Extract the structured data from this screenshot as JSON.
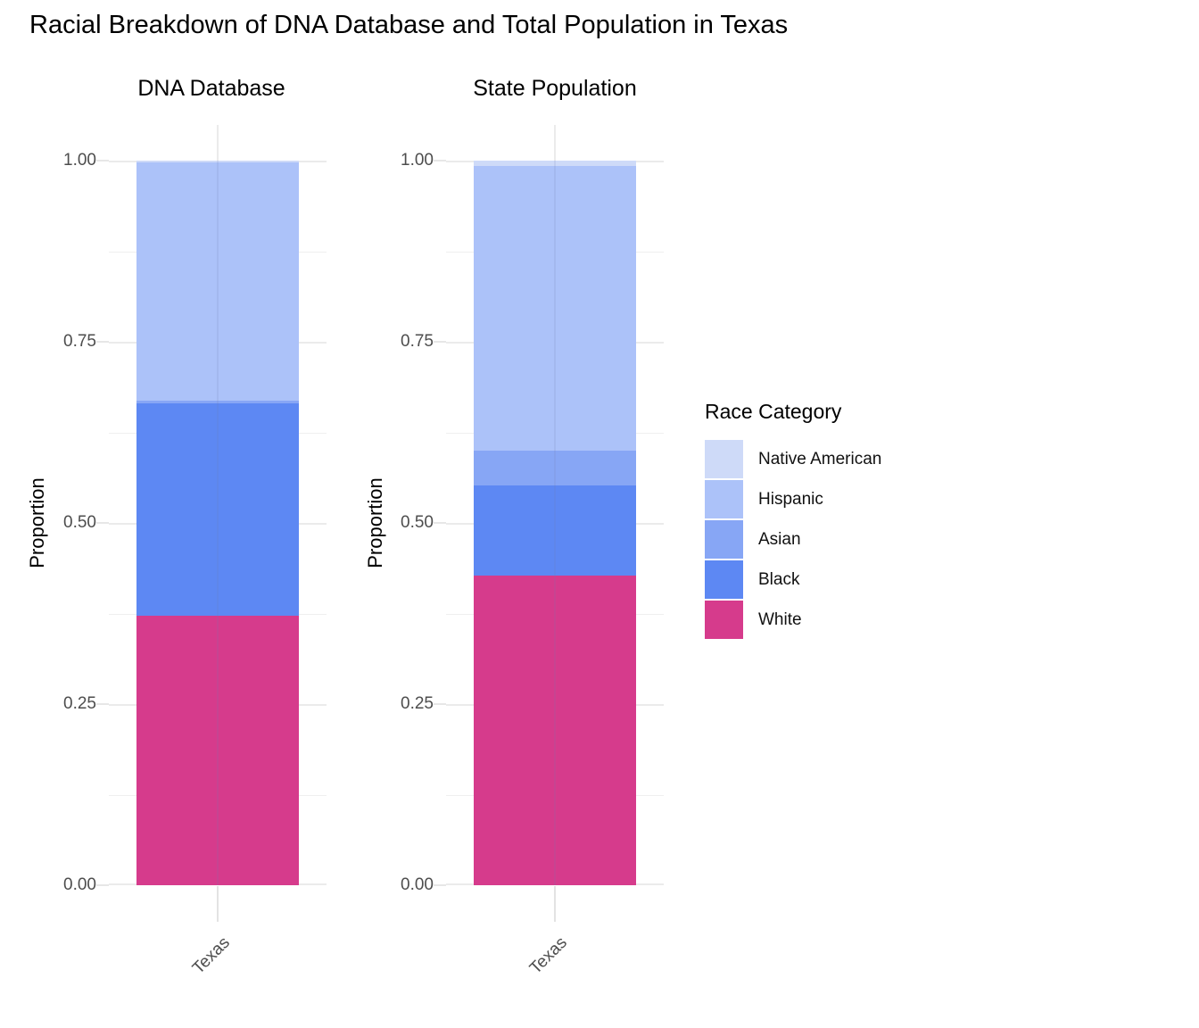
{
  "title": "Racial Breakdown of DNA Database and Total Population in Texas",
  "colors": {
    "native_american": "#cedaf8",
    "hispanic": "#acc2f9",
    "asian": "#87a6f5",
    "black": "#5d88f3",
    "white": "#d63b8c"
  },
  "legend": {
    "title": "Race Category",
    "entries": [
      {
        "label": "Native American",
        "color_key": "native_american"
      },
      {
        "label": "Hispanic",
        "color_key": "hispanic"
      },
      {
        "label": "Asian",
        "color_key": "asian"
      },
      {
        "label": "Black",
        "color_key": "black"
      },
      {
        "label": "White",
        "color_key": "white"
      }
    ]
  },
  "chart_data": {
    "type": "bar",
    "stacked": true,
    "title": "Racial Breakdown of DNA Database and Total Population in Texas",
    "ylabel": "Proportion",
    "ylim": [
      0,
      1
    ],
    "yticks": [
      "1.00",
      "0.75",
      "0.50",
      "0.25",
      "0.00"
    ],
    "ytick_values": [
      1.0,
      0.75,
      0.5,
      0.25,
      0.0
    ],
    "grid": true,
    "legend_position": "right",
    "categories": [
      "Texas"
    ],
    "panels": [
      {
        "title": "DNA Database",
        "x_tick_label": "Texas",
        "series": [
          {
            "name": "White",
            "color_key": "white",
            "value": 0.372
          },
          {
            "name": "Black",
            "color_key": "black",
            "value": 0.293
          },
          {
            "name": "Asian",
            "color_key": "asian",
            "value": 0.004
          },
          {
            "name": "Hispanic",
            "color_key": "hispanic",
            "value": 0.329
          },
          {
            "name": "Native American",
            "color_key": "native_american",
            "value": 0.002
          }
        ]
      },
      {
        "title": "State Population",
        "x_tick_label": "Texas",
        "series": [
          {
            "name": "White",
            "color_key": "white",
            "value": 0.427
          },
          {
            "name": "Black",
            "color_key": "black",
            "value": 0.125
          },
          {
            "name": "Asian",
            "color_key": "asian",
            "value": 0.048
          },
          {
            "name": "Hispanic",
            "color_key": "hispanic",
            "value": 0.392
          },
          {
            "name": "Native American",
            "color_key": "native_american",
            "value": 0.008
          }
        ]
      }
    ]
  }
}
